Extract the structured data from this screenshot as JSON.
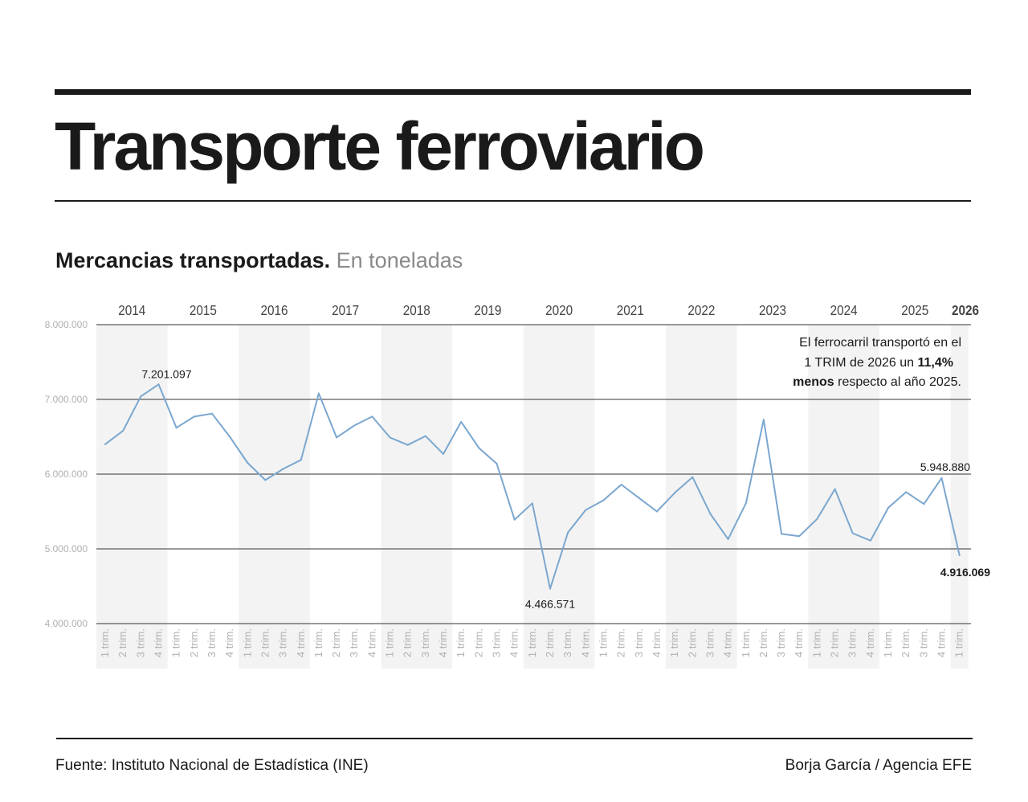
{
  "header": {
    "title": "Transporte ferroviario",
    "subtitle_bold": "Mercancias transportadas.",
    "subtitle_light": "En toneladas"
  },
  "footer": {
    "source": "Fuente: Instituto Nacional de Estadística (INE)",
    "credit": "Borja García / Agencia EFE"
  },
  "colors": {
    "line": "#7ba7cf",
    "band": "#f3f3f3",
    "grid": "#333333",
    "axis_label": "#b0b0b0",
    "year_label": "#444444"
  },
  "chart_data": {
    "type": "line",
    "ylim": [
      4000000,
      8000000
    ],
    "y_ticks": [
      "4.000.000",
      "5.000.000",
      "6.000.000",
      "7.000.000",
      "8.000.000"
    ],
    "y_tick_values": [
      4000000,
      5000000,
      6000000,
      7000000,
      8000000
    ],
    "years": [
      "2014",
      "2015",
      "2016",
      "2017",
      "2018",
      "2019",
      "2020",
      "2021",
      "2022",
      "2023",
      "2024",
      "2025",
      "2026"
    ],
    "quarter_labels": [
      "1 trim.",
      "2 trim.",
      "3 trim.",
      "4 trim."
    ],
    "x_labels": [
      "1 trim.",
      "2 trim.",
      "3 trim.",
      "4 trim.",
      "1 trim.",
      "2 trim.",
      "3 trim.",
      "4 trim.",
      "1 trim.",
      "2 trim.",
      "3 trim.",
      "4 trim.",
      "1 trim.",
      "2 trim.",
      "3 trim.",
      "4 trim.",
      "1 trim.",
      "2 trim.",
      "3 trim.",
      "4 trim.",
      "1 trim.",
      "2 trim.",
      "3 trim.",
      "4 trim.",
      "1 trim.",
      "2 trim.",
      "3 trim.",
      "4 trim.",
      "1 trim.",
      "2 trim.",
      "3 trim.",
      "4 trim.",
      "1 trim.",
      "2 trim.",
      "3 trim.",
      "4 trim.",
      "1 trim.",
      "2 trim.",
      "3 trim.",
      "4 trim.",
      "1 trim.",
      "2 trim.",
      "3 trim.",
      "4 trim.",
      "1 trim.",
      "2 trim.",
      "3 trim.",
      "4 trim.",
      "1 trim."
    ],
    "values": [
      6400000,
      6580000,
      7040000,
      7201097,
      6620000,
      6770000,
      6810000,
      6500000,
      6150000,
      5920000,
      6070000,
      6190000,
      7080000,
      6490000,
      6650000,
      6770000,
      6490000,
      6390000,
      6510000,
      6270000,
      6700000,
      6350000,
      6140000,
      5390000,
      5610000,
      4466571,
      5220000,
      5520000,
      5650000,
      5860000,
      5680000,
      5500000,
      5750000,
      5960000,
      5470000,
      5130000,
      5610000,
      6730000,
      5200000,
      5170000,
      5400000,
      5800000,
      5210000,
      5110000,
      5550000,
      5760000,
      5600000,
      5948880,
      4916069
    ],
    "annotations": [
      {
        "index": 3,
        "label": "7.201.097",
        "position": "above"
      },
      {
        "index": 25,
        "label": "4.466.571",
        "position": "below"
      },
      {
        "index": 47,
        "label": "5.948.880",
        "position": "above"
      },
      {
        "index": 48,
        "label": "4.916.069",
        "position": "below",
        "bold": true
      }
    ],
    "note": {
      "line1": "El ferrocarril transportó en el",
      "line2_pre": "1 TRIM de 2026 un",
      "line2_bold": "11,4%",
      "line3_bold": "menos",
      "line3_post": "respecto al año 2025."
    },
    "grid": true
  }
}
